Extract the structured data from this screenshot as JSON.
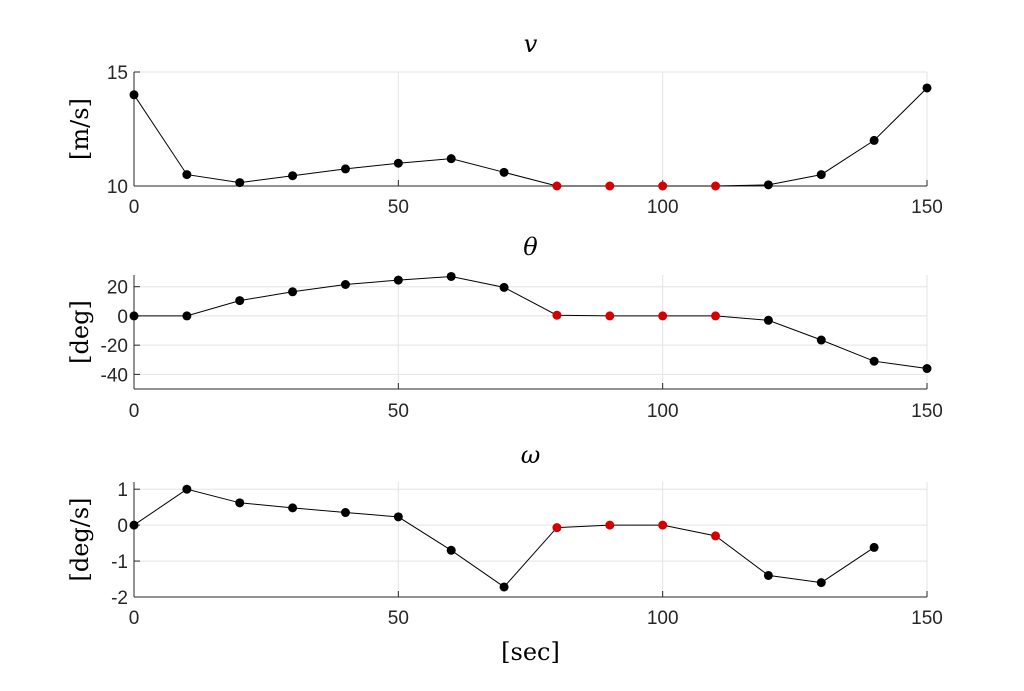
{
  "chart_data": [
    {
      "type": "line",
      "title": "v",
      "ylabel": "[m/s]",
      "xlabel": "",
      "xlim": [
        0,
        150
      ],
      "ylim": [
        10,
        15
      ],
      "xticks": [
        0,
        50,
        100,
        150
      ],
      "yticks": [
        10,
        15
      ],
      "grid": true,
      "colors": {
        "normal": "#000000",
        "highlight": "#d40000"
      },
      "x": [
        0,
        10,
        20,
        30,
        40,
        50,
        60,
        70,
        80,
        90,
        100,
        110,
        120,
        130,
        140,
        150
      ],
      "y": [
        14.0,
        10.5,
        10.15,
        10.45,
        10.75,
        11.0,
        11.2,
        10.6,
        10.0,
        10.0,
        10.0,
        10.0,
        10.05,
        10.5,
        12.0,
        14.3
      ],
      "highlighted": [
        false,
        false,
        false,
        false,
        false,
        false,
        false,
        false,
        true,
        true,
        true,
        true,
        false,
        false,
        false,
        false
      ]
    },
    {
      "type": "line",
      "title": "θ",
      "ylabel": "[deg]",
      "xlabel": "",
      "xlim": [
        0,
        150
      ],
      "ylim": [
        -50,
        28
      ],
      "xticks": [
        0,
        50,
        100,
        150
      ],
      "yticks": [
        -40,
        -20,
        0,
        20
      ],
      "grid": true,
      "colors": {
        "normal": "#000000",
        "highlight": "#d40000"
      },
      "x": [
        0,
        10,
        20,
        30,
        40,
        50,
        60,
        70,
        80,
        90,
        100,
        110,
        120,
        130,
        140,
        150
      ],
      "y": [
        0,
        0,
        10.5,
        16.5,
        21.5,
        24.5,
        27,
        19.5,
        0.5,
        0,
        0,
        0,
        -3,
        -16.5,
        -31,
        -36
      ],
      "highlighted": [
        false,
        false,
        false,
        false,
        false,
        false,
        false,
        false,
        true,
        true,
        true,
        true,
        false,
        false,
        false,
        false
      ]
    },
    {
      "type": "line",
      "title": "ω",
      "ylabel": "[deg/s]",
      "xlabel": "[sec]",
      "xlim": [
        0,
        150
      ],
      "ylim": [
        -2,
        1.2
      ],
      "xticks": [
        0,
        50,
        100,
        150
      ],
      "yticks": [
        -2,
        -1,
        0,
        1
      ],
      "grid": true,
      "colors": {
        "normal": "#000000",
        "highlight": "#d40000"
      },
      "x": [
        0,
        10,
        20,
        30,
        40,
        50,
        60,
        70,
        80,
        90,
        100,
        110,
        120,
        130,
        140
      ],
      "y": [
        0.0,
        1.0,
        0.62,
        0.48,
        0.35,
        0.23,
        -0.7,
        -1.72,
        -0.07,
        0.0,
        0.0,
        -0.3,
        -1.4,
        -1.6,
        -0.62
      ],
      "highlighted": [
        false,
        false,
        false,
        false,
        false,
        false,
        false,
        false,
        true,
        true,
        true,
        true,
        false,
        false,
        false
      ]
    }
  ]
}
